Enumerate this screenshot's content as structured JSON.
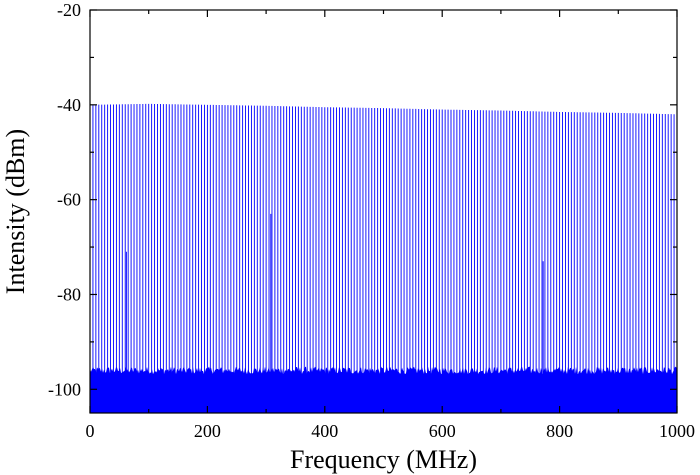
{
  "chart_data": {
    "type": "line",
    "title": "",
    "xlabel": "Frequency (MHz)",
    "ylabel": "Intensity (dBm)",
    "xlim": [
      0,
      1000
    ],
    "ylim": [
      -105,
      -20
    ],
    "x_ticks": [
      0,
      200,
      400,
      600,
      800,
      1000
    ],
    "x_tick_labels": [
      "0",
      "200",
      "400",
      "600",
      "800",
      "1000"
    ],
    "y_ticks": [
      -100,
      -80,
      -60,
      -40,
      -20
    ],
    "y_tick_labels": [
      "-100",
      "-80",
      "-60",
      "-40",
      "-20"
    ],
    "grid": false,
    "line_color": "#0000ff",
    "series": [
      {
        "comb_spacing_mhz": 5,
        "noise_floor_dbm": -96,
        "peak_envelope": {
          "x": [
            0,
            100,
            200,
            300,
            400,
            500,
            600,
            700,
            800,
            900,
            1000
          ],
          "y": [
            -40,
            -39.8,
            -40,
            -40.2,
            -40.5,
            -40.7,
            -41,
            -41.2,
            -41.5,
            -41.7,
            -42
          ]
        }
      }
    ],
    "annotations": [
      {
        "x": 62,
        "y": -71
      },
      {
        "x": 308,
        "y": -63
      },
      {
        "x": 772,
        "y": -73
      }
    ]
  },
  "colors": {
    "plot_line": "#0000ff",
    "axis": "#000000",
    "background": "#ffffff"
  }
}
